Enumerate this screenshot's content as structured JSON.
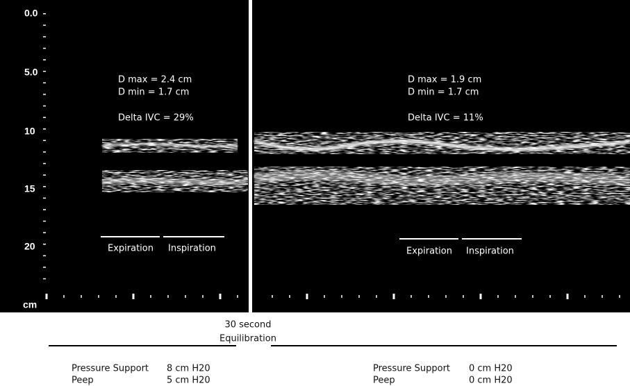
{
  "depth_axis": {
    "labels": [
      "0.0",
      "5.0",
      "10",
      "15",
      "20"
    ],
    "unit": "cm"
  },
  "panels": [
    {
      "measurements": [
        "D max = 2.4 cm",
        "D min = 1.7 cm"
      ],
      "delta": "Delta IVC = 29%",
      "phases": [
        "Expiration",
        "Inspiration"
      ],
      "settings": [
        {
          "label": "Pressure Support",
          "value": "8 cm H20"
        },
        {
          "label": "Peep",
          "value": "5 cm H20"
        }
      ]
    },
    {
      "measurements": [
        "D max = 1.9 cm",
        "D min  = 1.7 cm"
      ],
      "delta": "Delta IVC = 11%",
      "phases": [
        "Expiration",
        "Inspiration"
      ],
      "settings": [
        {
          "label": "Pressure Support",
          "value": "0 cm H20"
        },
        {
          "label": "Peep",
          "value": "0 cm H20"
        }
      ]
    }
  ],
  "transition": [
    "30 second",
    "Equilibration"
  ]
}
